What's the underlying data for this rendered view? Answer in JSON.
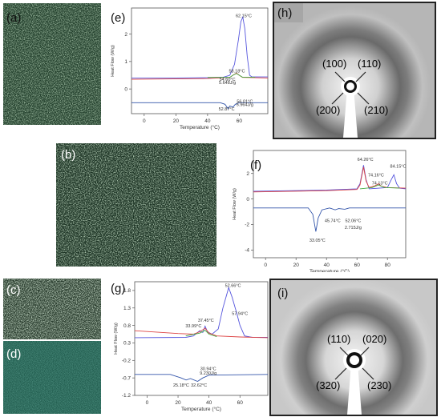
{
  "panels": {
    "a": "(a)",
    "b": "(b)",
    "c": "(c)",
    "d": "(d)",
    "e": "(e)",
    "f": "(f)",
    "g": "(g)",
    "h": "(h)",
    "i": "(i)"
  },
  "xrd_h": {
    "labels": [
      "(100)",
      "(110)",
      "(200)",
      "(210)"
    ]
  },
  "xrd_i": {
    "labels": [
      "(110)",
      "(020)",
      "(320)",
      "(230)"
    ]
  },
  "colors": {
    "heat": "#5555dd",
    "fit": "#dd4444",
    "base": "#44aa44",
    "cool": "#3355aa"
  },
  "chart_data": [
    {
      "type": "line",
      "id": "e",
      "xlabel": "Temperature (°C)",
      "ylabel": "Heat Flow (W/g)",
      "xticks": [
        0,
        20,
        40,
        60
      ],
      "yticks": [
        0,
        1,
        2
      ],
      "xlim": [
        -8,
        78
      ],
      "ylim": [
        -0.9,
        2.95
      ],
      "annotations": [
        {
          "text": "62.15°C",
          "x": 62.8,
          "y": 2.62
        },
        {
          "text": "58.18°C",
          "x": 58.5,
          "y": 0.6
        },
        {
          "text": "54.60°C",
          "x": 52.5,
          "y": 0.3
        },
        {
          "text": "5.648J/g",
          "x": 52.5,
          "y": 0.18
        },
        {
          "text": "52.87°C",
          "x": 52.0,
          "y": -0.78
        },
        {
          "text": "56.01°C",
          "x": 63.5,
          "y": -0.5
        },
        {
          "text": "5.964J/g",
          "x": 63.5,
          "y": -0.62
        }
      ],
      "series": [
        {
          "role": "heat",
          "points": [
            [
              -8,
              0.4
            ],
            [
              20,
              0.4
            ],
            [
              40,
              0.41
            ],
            [
              50,
              0.43
            ],
            [
              54,
              0.5
            ],
            [
              57,
              0.9
            ],
            [
              59.5,
              1.8
            ],
            [
              61,
              2.45
            ],
            [
              62.2,
              2.62
            ],
            [
              63.5,
              2.2
            ],
            [
              65,
              1.2
            ],
            [
              66.5,
              0.5
            ],
            [
              68,
              0.44
            ],
            [
              78,
              0.44
            ]
          ]
        },
        {
          "role": "fit",
          "points": [
            [
              -8,
              0.35
            ],
            [
              40,
              0.38
            ],
            [
              54,
              0.42
            ],
            [
              56,
              0.5
            ],
            [
              58.2,
              0.58
            ],
            [
              60,
              0.5
            ],
            [
              62,
              0.42
            ],
            [
              78,
              0.4
            ]
          ]
        },
        {
          "role": "base",
          "points": [
            [
              40,
              0.42
            ],
            [
              54,
              0.42
            ],
            [
              56,
              0.5
            ],
            [
              58.2,
              0.56
            ],
            [
              60,
              0.5
            ],
            [
              62,
              0.43
            ],
            [
              70,
              0.43
            ]
          ]
        },
        {
          "role": "cool",
          "points": [
            [
              -8,
              -0.5
            ],
            [
              48,
              -0.5
            ],
            [
              51,
              -0.56
            ],
            [
              52.9,
              -0.72
            ],
            [
              54,
              -0.62
            ],
            [
              56,
              -0.66
            ],
            [
              57.5,
              -0.56
            ],
            [
              60,
              -0.5
            ],
            [
              78,
              -0.5
            ]
          ]
        }
      ]
    },
    {
      "type": "line",
      "id": "f",
      "xlabel": "Temperature (°C)",
      "ylabel": "Heat Flow (W/g)",
      "xticks": [
        0,
        20,
        40,
        60,
        80
      ],
      "yticks": [
        -4,
        -2,
        0,
        2
      ],
      "xlim": [
        -8,
        92
      ],
      "ylim": [
        -4.6,
        3.8
      ],
      "annotations": [
        {
          "text": "64.26°C",
          "x": 65.5,
          "y": 3.0
        },
        {
          "text": "84.15°C",
          "x": 87.0,
          "y": 2.45
        },
        {
          "text": "74.16°C",
          "x": 72.5,
          "y": 1.75
        },
        {
          "text": "74.13°C",
          "x": 75.0,
          "y": 1.15
        },
        {
          "text": "45.74°C",
          "x": 44.0,
          "y": -1.8
        },
        {
          "text": "52.06°C",
          "x": 57.5,
          "y": -1.8
        },
        {
          "text": "2.715J/g",
          "x": 57.5,
          "y": -2.35
        },
        {
          "text": "33.05°C",
          "x": 34.0,
          "y": -3.35
        }
      ],
      "series": [
        {
          "role": "heat",
          "points": [
            [
              -8,
              0.6
            ],
            [
              40,
              0.7
            ],
            [
              60,
              0.8
            ],
            [
              62,
              1.2
            ],
            [
              64.3,
              2.65
            ],
            [
              66,
              1.5
            ],
            [
              68,
              0.8
            ],
            [
              80,
              0.9
            ],
            [
              82,
              1.4
            ],
            [
              84.2,
              1.9
            ],
            [
              86,
              1.2
            ],
            [
              88,
              0.85
            ],
            [
              92,
              0.8
            ]
          ]
        },
        {
          "role": "fit",
          "points": [
            [
              -8,
              0.55
            ],
            [
              40,
              0.65
            ],
            [
              60,
              0.75
            ],
            [
              62,
              1.1
            ],
            [
              64.3,
              2.5
            ],
            [
              66,
              1.4
            ],
            [
              68,
              0.9
            ],
            [
              72,
              1.05
            ],
            [
              74.2,
              1.2
            ],
            [
              76,
              1.0
            ],
            [
              80,
              0.9
            ],
            [
              92,
              0.85
            ]
          ]
        },
        {
          "role": "base",
          "points": [
            [
              62,
              0.8
            ],
            [
              70,
              0.9
            ],
            [
              74.1,
              1.1
            ],
            [
              78,
              0.9
            ],
            [
              88,
              0.85
            ]
          ]
        },
        {
          "role": "cool",
          "points": [
            [
              -8,
              -0.7
            ],
            [
              28,
              -0.7
            ],
            [
              31,
              -1.2
            ],
            [
              33,
              -2.55
            ],
            [
              34.5,
              -1.5
            ],
            [
              37,
              -0.85
            ],
            [
              42,
              -0.7
            ],
            [
              45.7,
              -0.85
            ],
            [
              48,
              -0.75
            ],
            [
              52,
              -0.8
            ],
            [
              55,
              -0.7
            ],
            [
              92,
              -0.7
            ]
          ]
        }
      ]
    },
    {
      "type": "line",
      "id": "g",
      "xlabel": "Temperature (°C)",
      "ylabel": "Heat Flow (W/g)",
      "xticks": [
        0,
        20,
        40,
        60
      ],
      "yticks": [
        -1.2,
        -0.7,
        -0.2,
        0.3,
        0.8,
        1.3,
        1.8
      ],
      "xlim": [
        -8,
        78
      ],
      "ylim": [
        -1.2,
        2.05
      ],
      "annotations": [
        {
          "text": "52.66°C",
          "x": 55.5,
          "y": 1.9
        },
        {
          "text": "37.45°C",
          "x": 38.0,
          "y": 0.9
        },
        {
          "text": "33.99°C",
          "x": 30.0,
          "y": 0.75
        },
        {
          "text": "57.94°C",
          "x": 60.0,
          "y": 1.1
        },
        {
          "text": "30.94°C",
          "x": 39.5,
          "y": -0.48
        },
        {
          "text": "9.230J/g",
          "x": 39.5,
          "y": -0.6
        },
        {
          "text": "25.18°C",
          "x": 22.0,
          "y": -0.95
        },
        {
          "text": "32.62°C",
          "x": 33.5,
          "y": -0.95
        }
      ],
      "series": [
        {
          "role": "heat",
          "points": [
            [
              -8,
              0.45
            ],
            [
              25,
              0.46
            ],
            [
              30,
              0.5
            ],
            [
              34,
              0.65
            ],
            [
              36,
              0.6
            ],
            [
              37.5,
              0.78
            ],
            [
              39,
              0.62
            ],
            [
              42,
              0.55
            ],
            [
              46,
              0.7
            ],
            [
              49,
              1.3
            ],
            [
              52.7,
              1.88
            ],
            [
              55,
              1.6
            ],
            [
              57.9,
              1.15
            ],
            [
              60,
              0.8
            ],
            [
              63,
              0.5
            ],
            [
              68,
              0.46
            ],
            [
              78,
              0.46
            ]
          ]
        },
        {
          "role": "fit",
          "points": [
            [
              -8,
              0.65
            ],
            [
              20,
              0.57
            ],
            [
              30,
              0.55
            ],
            [
              34,
              0.62
            ],
            [
              37.5,
              0.72
            ],
            [
              40,
              0.58
            ],
            [
              45,
              0.5
            ],
            [
              60,
              0.47
            ],
            [
              78,
              0.45
            ]
          ]
        },
        {
          "role": "base",
          "points": [
            [
              25,
              0.5
            ],
            [
              34,
              0.58
            ],
            [
              37.5,
              0.66
            ],
            [
              40,
              0.55
            ],
            [
              45,
              0.48
            ]
          ]
        },
        {
          "role": "cool",
          "points": [
            [
              -8,
              -0.6
            ],
            [
              15,
              -0.6
            ],
            [
              22,
              -0.7
            ],
            [
              25.2,
              -0.76
            ],
            [
              28,
              -0.72
            ],
            [
              32.6,
              -0.8
            ],
            [
              36,
              -0.7
            ],
            [
              40,
              -0.62
            ],
            [
              78,
              -0.6
            ]
          ]
        }
      ]
    }
  ]
}
